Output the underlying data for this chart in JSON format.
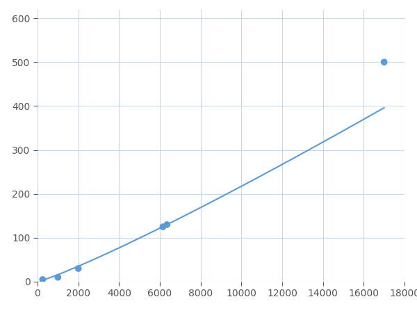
{
  "x_points": [
    250,
    1000,
    2000,
    6250,
    17000
  ],
  "y_points": [
    5,
    10,
    30,
    128,
    500
  ],
  "x_markers": [
    250,
    1000,
    2000,
    6150,
    6350,
    17000
  ],
  "y_markers": [
    5,
    10,
    30,
    125,
    130,
    500
  ],
  "line_color": "#5b9bd5",
  "marker_color": "#5b9bd5",
  "marker_size": 7,
  "line_width": 1.5,
  "xlim": [
    0,
    18000
  ],
  "ylim": [
    0,
    620
  ],
  "xticks": [
    0,
    2000,
    4000,
    6000,
    8000,
    10000,
    12000,
    14000,
    16000,
    18000
  ],
  "yticks": [
    0,
    100,
    200,
    300,
    400,
    500,
    600
  ],
  "grid_color": "#c8d8e8",
  "background_color": "#ffffff",
  "tick_fontsize": 10
}
